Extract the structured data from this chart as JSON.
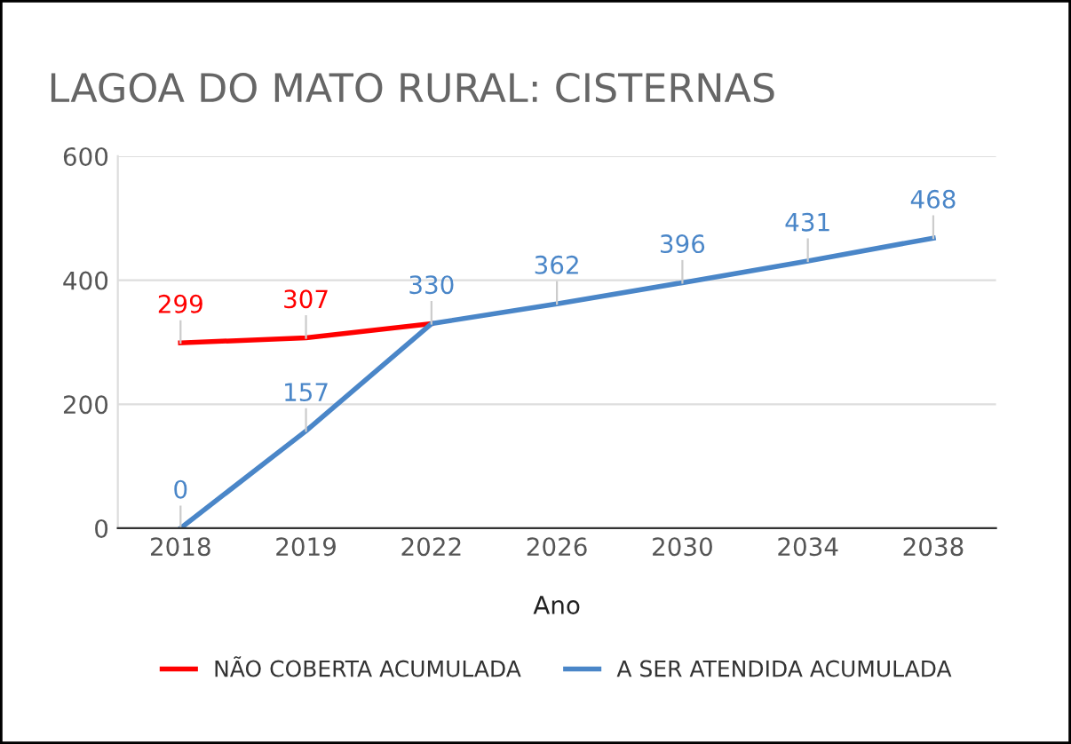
{
  "chart_data": {
    "type": "line",
    "title": "LAGOA DO MATO RURAL: CISTERNAS",
    "xlabel": "Ano",
    "categories": [
      "2018",
      "2019",
      "2022",
      "2026",
      "2030",
      "2034",
      "2038"
    ],
    "series": [
      {
        "name": "NÃO COBERTA ACUMULADA",
        "color": "#ff0000",
        "values": [
          299,
          307,
          330,
          null,
          null,
          null,
          null
        ],
        "value_labels": [
          "299",
          "307",
          null,
          null,
          null,
          null,
          null
        ]
      },
      {
        "name": "A SER ATENDIDA ACUMULADA",
        "color": "#4a86c8",
        "values": [
          0,
          157,
          330,
          362,
          396,
          431,
          468
        ],
        "value_labels": [
          "0",
          "157",
          "330",
          "362",
          "396",
          "431",
          "468"
        ]
      }
    ],
    "ylim": [
      0,
      600
    ],
    "yticks": [
      0,
      200,
      400,
      600
    ],
    "grid": "y",
    "legend": "bottom",
    "marker": "none",
    "line_style": "solid"
  }
}
